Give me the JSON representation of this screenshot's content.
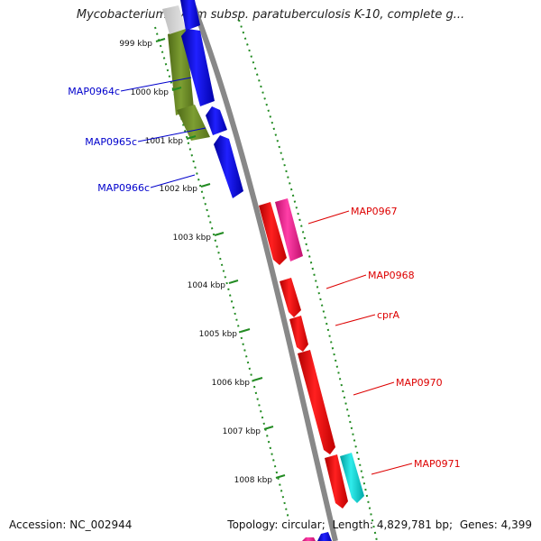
{
  "header": {
    "title": "Mycobacterium avium subsp. paratuberculosis K-10, complete g..."
  },
  "footer": {
    "accession_label": "Accession:",
    "accession": "NC_002944",
    "topology_label": "Topology:",
    "topology": "circular;",
    "length_label": "Length:",
    "length": "4,829,781 bp;",
    "genes_label": "Genes:",
    "genes": "4,399"
  },
  "map": {
    "ticks": [
      "999 kbp",
      "1000 kbp",
      "1001 kbp",
      "1002 kbp",
      "1003 kbp",
      "1004 kbp",
      "1005 kbp",
      "1006 kbp",
      "1007 kbp",
      "1008 kbp"
    ],
    "genes_reverse": [
      {
        "name": "MAP0964c",
        "color": "#0000cc"
      },
      {
        "name": "MAP0965c",
        "color": "#0000cc"
      },
      {
        "name": "MAP0966c",
        "color": "#0000cc"
      }
    ],
    "genes_forward": [
      {
        "name": "MAP0967",
        "color": "#dd0000"
      },
      {
        "name": "MAP0968",
        "color": "#dd0000"
      },
      {
        "name": "cprA",
        "color": "#dd0000"
      },
      {
        "name": "MAP0970",
        "color": "#dd0000"
      },
      {
        "name": "MAP0971",
        "color": "#dd0000"
      }
    ],
    "colors": {
      "backbone": "#888888",
      "cds_forward": "#ff0000",
      "cds_reverse": "#0000ff",
      "rna": "#ff1493",
      "other_feature": "#00cccc",
      "gc_skew": "#6b8e23",
      "ticks": "#228b22"
    }
  }
}
